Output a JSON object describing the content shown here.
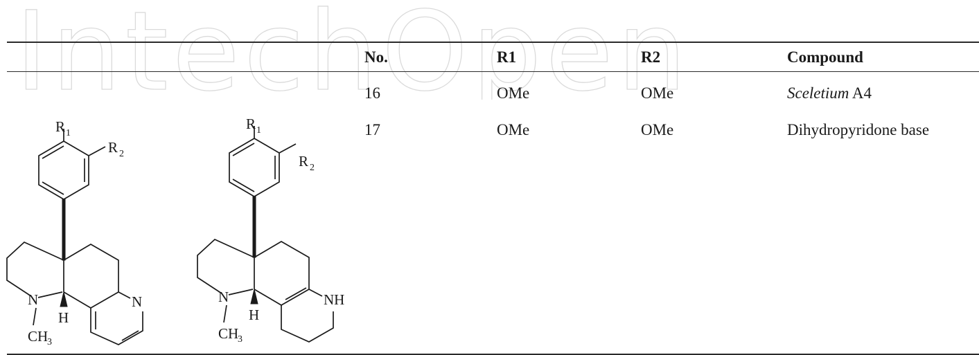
{
  "watermark": {
    "text": "IntechOpen"
  },
  "table": {
    "headers": {
      "no": "No.",
      "r1": "R1",
      "r2": "R2",
      "compound": "Compound"
    },
    "rows": [
      {
        "no": "16",
        "r1": "OMe",
        "r2": "OMe",
        "compound_italic": "Sceletium",
        "compound_rest": " A4"
      },
      {
        "no": "17",
        "r1": "OMe",
        "r2": "OMe",
        "compound_italic": "",
        "compound_rest": "Dihydropyridone base"
      }
    ]
  },
  "structures": {
    "labels": {
      "r": "R",
      "sub1": "1",
      "sub2": "2",
      "n": "N",
      "h": "H",
      "ch": "CH",
      "sub3": "3",
      "nh": "NH"
    }
  }
}
